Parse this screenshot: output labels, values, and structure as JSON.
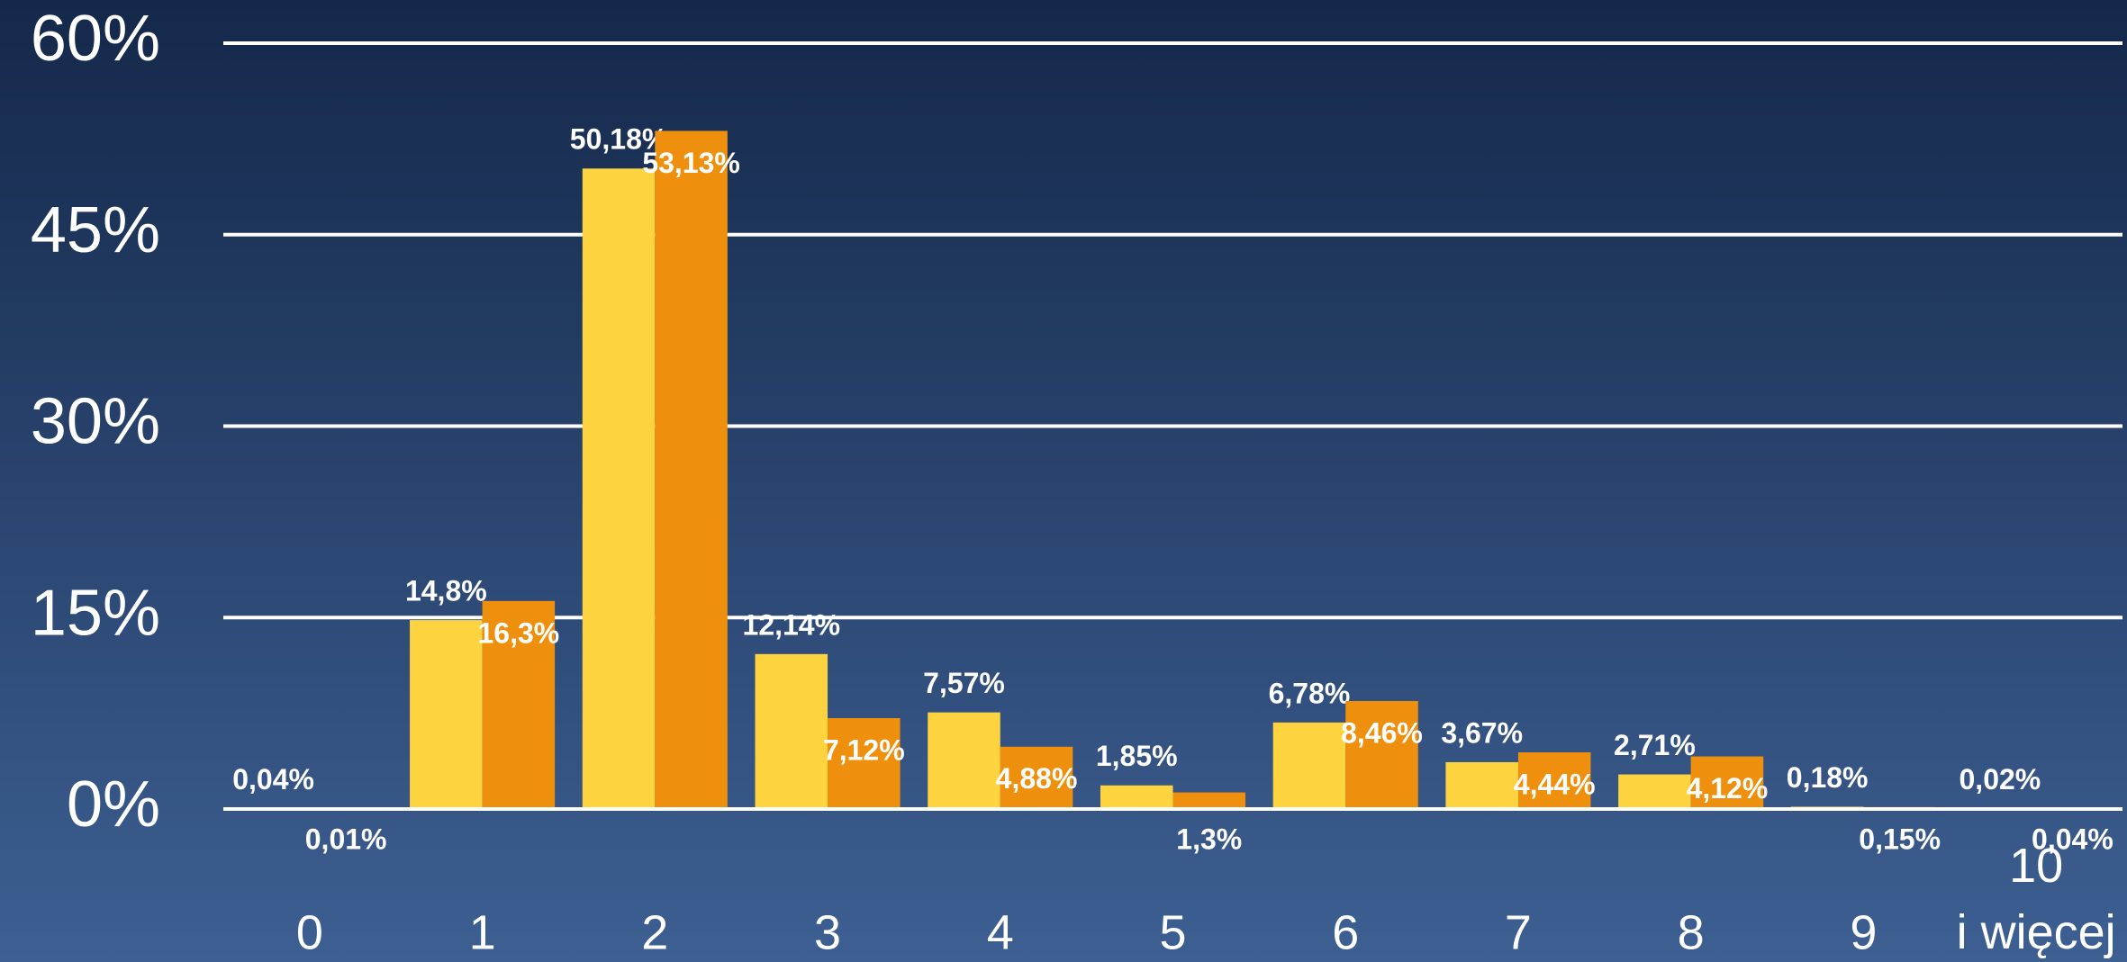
{
  "chart_data": {
    "type": "bar",
    "categories": [
      "0",
      "1",
      "2",
      "3",
      "4",
      "5",
      "6",
      "7",
      "8",
      "9",
      "10\ni więcej"
    ],
    "series": [
      {
        "color": "#fdd33f",
        "values": [
          0.04,
          14.8,
          50.18,
          12.14,
          7.57,
          1.85,
          6.78,
          3.67,
          2.71,
          0.18,
          0.02
        ],
        "value_labels": [
          "0,04%",
          "14,8%",
          "50,18%",
          "12,14%",
          "7,57%",
          "1,85%",
          "6,78%",
          "3,67%",
          "2,71%",
          "0,18%",
          "0,02%"
        ]
      },
      {
        "color": "#ee900d",
        "values": [
          0.01,
          16.3,
          53.13,
          7.12,
          4.88,
          1.3,
          8.46,
          4.44,
          4.12,
          0.15,
          0.04
        ],
        "value_labels": [
          "0,01%",
          "16,3%",
          "53,13%",
          "7,12%",
          "4,88%",
          "1,3%",
          "8,46%",
          "4,44%",
          "4,12%",
          "0,15%",
          "0,04%"
        ]
      }
    ],
    "ylim": [
      0,
      60
    ],
    "yticks": [
      {
        "value": 0,
        "label": "0%"
      },
      {
        "value": 15,
        "label": "15%"
      },
      {
        "value": 30,
        "label": "30%"
      },
      {
        "value": 45,
        "label": "45%"
      },
      {
        "value": 60,
        "label": "60%"
      }
    ],
    "grid": true
  }
}
